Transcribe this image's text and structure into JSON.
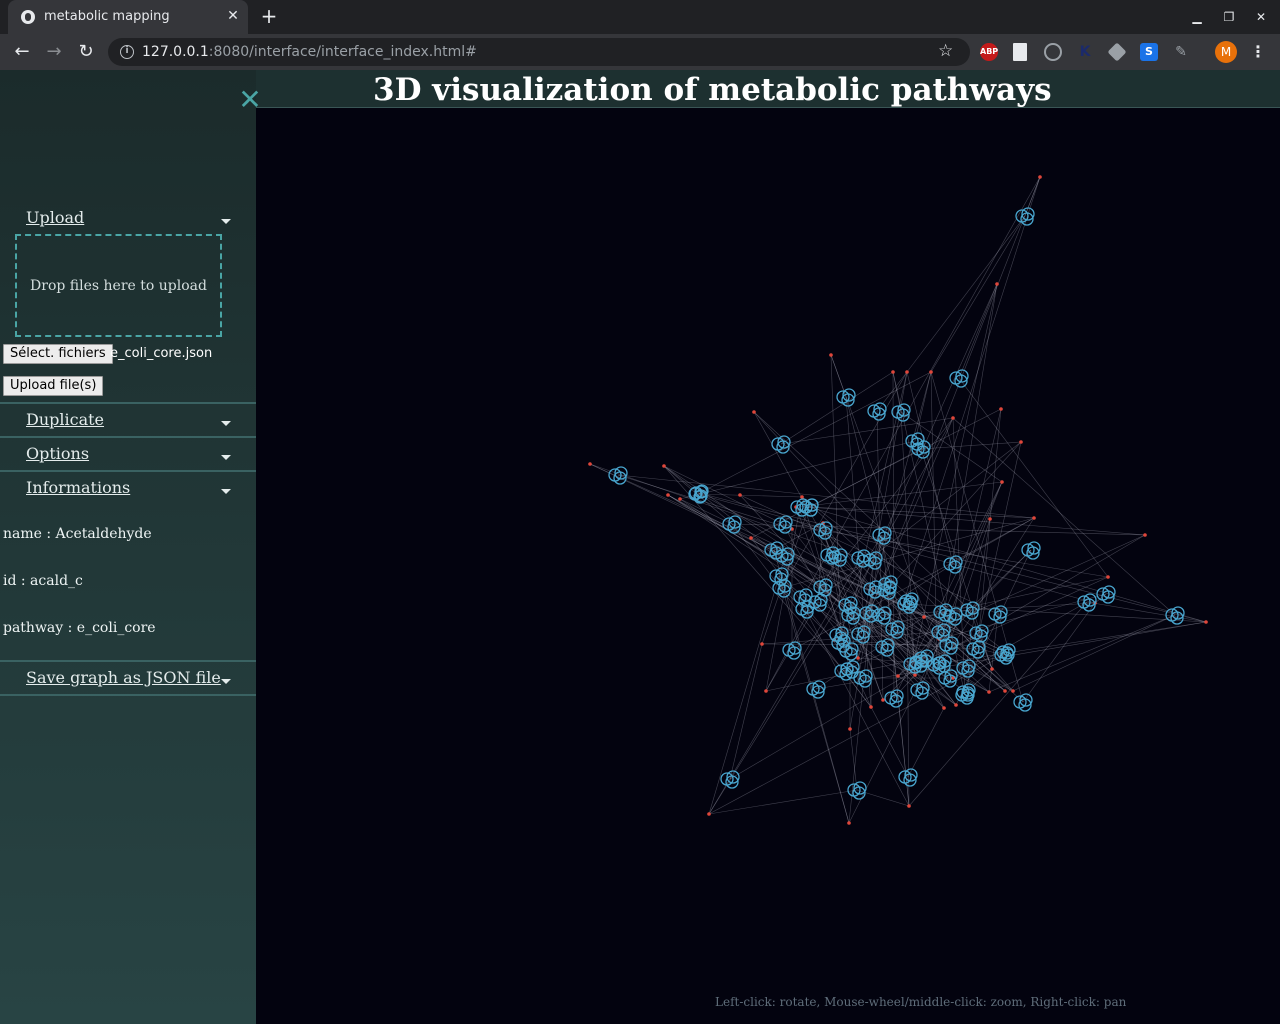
{
  "browser": {
    "tab_title": "metabolic mapping",
    "tab_close": "✕",
    "new_tab": "+",
    "url_host": "127.0.0.1",
    "url_rest": ":8080/interface/interface_index.html#",
    "extensions": [
      "ABP",
      "file-icon",
      "github-icon",
      "k-icon",
      "tag-icon",
      "S",
      "paint-icon"
    ],
    "extension_colors": {
      "abp": "#c41a1a",
      "s": "#1a73e8"
    },
    "avatar_letter": "M"
  },
  "page": {
    "title": "3D visualization of metabolic pathways",
    "help_text": "Left-click: rotate, Mouse-wheel/middle-click: zoom, Right-click: pan"
  },
  "sidebar": {
    "close_glyph": "✕",
    "upload": {
      "title": "Upload",
      "dropzone_text": "Drop files here to upload",
      "select_button": "Sélect. fichiers",
      "file_name": "e_coli_core.json",
      "upload_button": "Upload file(s)"
    },
    "duplicate_title": "Duplicate",
    "options_title": "Options",
    "informations": {
      "title": "Informations",
      "name_line": "name : Acetaldehyde",
      "id_line": "id : acald_c",
      "pathway_line": "pathway : e_coli_core"
    },
    "save_title": "Save graph as JSON file"
  },
  "colors": {
    "metabolite_node": "#49a6cf",
    "reaction_node": "#e0463a",
    "edge": "#b8b8c8",
    "sidebar_accent": "#4aa5a5",
    "canvas_bg": "#03030f"
  }
}
